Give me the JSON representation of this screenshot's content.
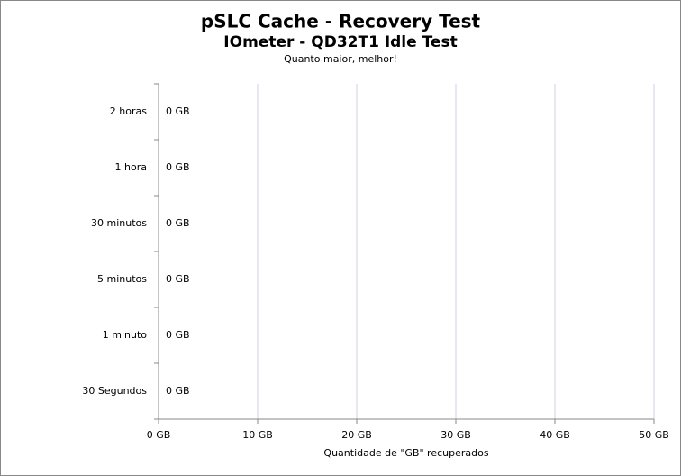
{
  "chart_data": {
    "type": "bar",
    "orientation": "horizontal",
    "title": "pSLC Cache - Recovery Test",
    "subtitle": "IOmeter - QD32T1 Idle Test",
    "note": "Quanto maior, melhor!",
    "x_label": "Quantidade de \"GB\" recuperados",
    "categories": [
      "2 horas",
      "1 hora",
      "30 minutos",
      "5 minutos",
      "1 minuto",
      "30 Segundos"
    ],
    "values": [
      0,
      0,
      0,
      0,
      0,
      0
    ],
    "value_labels": [
      "0 GB",
      "0 GB",
      "0 GB",
      "0 GB",
      "0 GB",
      "0 GB"
    ],
    "color": "#4472c4",
    "xlim": [
      0,
      50
    ],
    "xticks": [
      {
        "value": 0,
        "label": "0 GB"
      },
      {
        "value": 10,
        "label": "10 GB"
      },
      {
        "value": 20,
        "label": "20 GB"
      },
      {
        "value": 30,
        "label": "30 GB"
      },
      {
        "value": 40,
        "label": "40 GB"
      },
      {
        "value": 50,
        "label": "50 GB"
      }
    ],
    "grid": true
  }
}
